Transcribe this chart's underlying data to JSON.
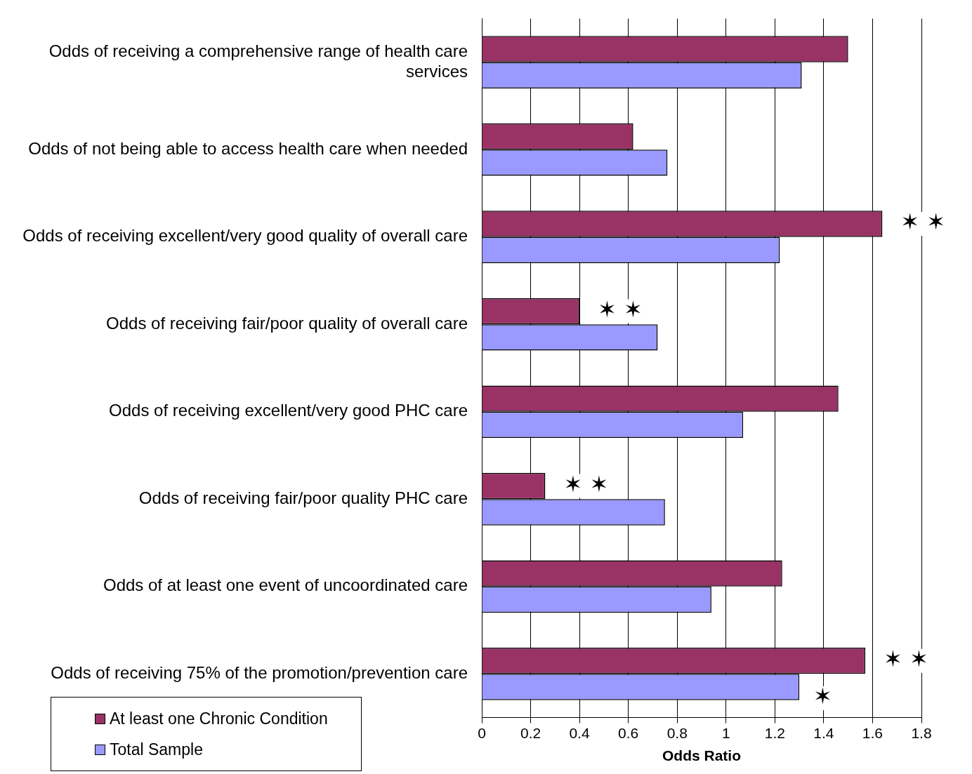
{
  "chart_data": {
    "type": "bar",
    "orientation": "horizontal",
    "xlabel": "Odds Ratio",
    "categories": [
      "Odds of receiving a comprehensive range of health care services",
      "Odds of not being able to access health care when needed",
      "Odds of receiving excellent/very good quality of overall care",
      "Odds of receiving fair/poor quality of overall care",
      "Odds of receiving excellent/very good PHC care",
      "Odds of receiving fair/poor quality PHC care",
      "Odds of at least one event of uncoordinated care",
      "Odds of receiving 75% of the promotion/prevention care"
    ],
    "series": [
      {
        "name": "At least one Chronic Condition",
        "color": "#993366",
        "values": [
          1.5,
          0.62,
          1.64,
          0.4,
          1.46,
          0.26,
          1.23,
          1.57
        ]
      },
      {
        "name": "Total Sample",
        "color": "#9999ff",
        "values": [
          1.31,
          0.76,
          1.22,
          0.72,
          1.07,
          0.75,
          0.94,
          1.3
        ]
      }
    ],
    "xlim": [
      0,
      1.8
    ],
    "xticks": [
      0,
      0.2,
      0.4,
      0.6,
      0.8,
      1,
      1.2,
      1.4,
      1.6,
      1.8
    ],
    "grid": "x",
    "legend": "bottom left",
    "annotations": [
      {
        "text": "✶ ✶",
        "x": 1.64,
        "y": "Odds of receiving excellent/very good quality of overall care"
      },
      {
        "text": "✶ ✶",
        "x": 0.4,
        "y": "Odds of receiving fair/poor quality of overall care"
      },
      {
        "text": "✶ ✶",
        "x": 0.26,
        "y": "Odds of receiving fair/poor quality PHC care"
      },
      {
        "text": "✶ ✶",
        "x": 1.57,
        "y": "Odds of receiving 75% of the promotion/prevention care"
      },
      {
        "text": "✶",
        "x": 1.3,
        "y": "Odds of receiving 75% of the promotion/prevention care"
      }
    ]
  }
}
